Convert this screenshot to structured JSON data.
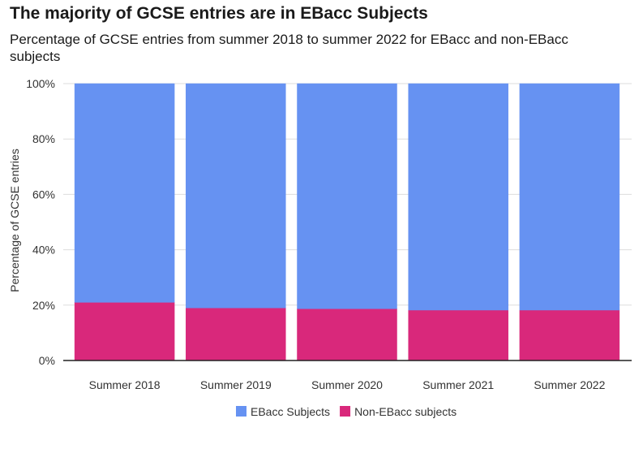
{
  "chart_data": {
    "type": "bar",
    "stacked": true,
    "title": "The majority of GCSE entries are in EBacc Subjects",
    "subtitle": "Percentage of GCSE entries from summer 2018 to summer 2022 for EBacc and non-EBacc subjects",
    "xlabel": "",
    "ylabel": "Percentage of GCSE entries",
    "categories": [
      "Summer 2018",
      "Summer 2019",
      "Summer 2020",
      "Summer 2021",
      "Summer 2022"
    ],
    "series": [
      {
        "name": "Non-EBacc subjects",
        "color": "#d9287b",
        "values": [
          21,
          19,
          18.7,
          18.2,
          18.2
        ]
      },
      {
        "name": "EBacc Subjects",
        "color": "#6692f2",
        "values": [
          79,
          81,
          81.3,
          81.8,
          81.8
        ]
      }
    ],
    "legend_order": [
      "EBacc Subjects",
      "Non-EBacc subjects"
    ],
    "ylim": [
      0,
      100
    ],
    "yticks": [
      "0%",
      "20%",
      "40%",
      "60%",
      "80%",
      "100%"
    ],
    "grid": true,
    "legend_position": "bottom"
  }
}
